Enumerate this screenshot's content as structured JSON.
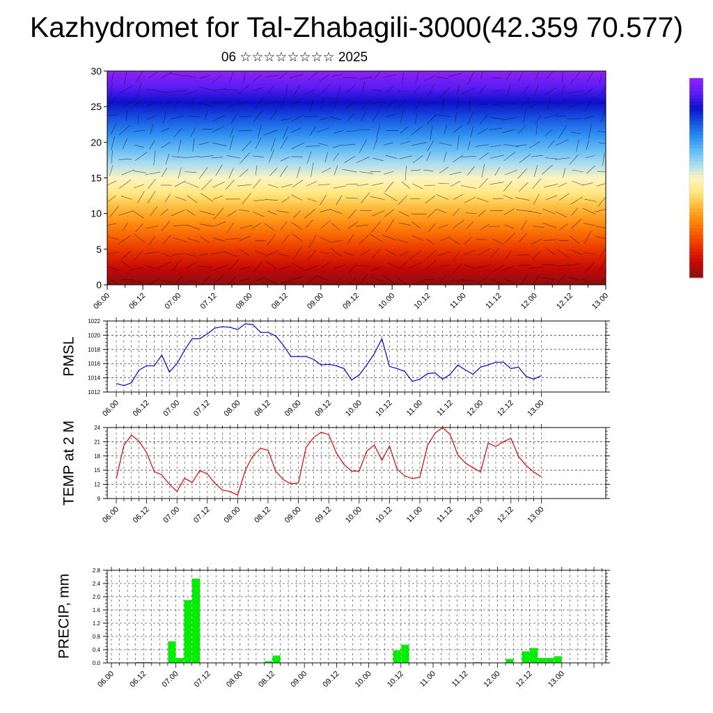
{
  "title": "Kazhydromet for Tal-Zhabagili-3000(42.359 70.577)",
  "subtitle": "06 ☆☆☆☆☆☆☆☆ 2025",
  "time_labels": [
    "06.00",
    "06.12",
    "07.00",
    "07.12",
    "08.00",
    "08.12",
    "09.00",
    "09.12",
    "10.00",
    "10.12",
    "11.00",
    "11.12",
    "12.00",
    "12.12",
    "13.00"
  ],
  "colors": {
    "pmsl_line": "#0000cc",
    "temp_line": "#dd0000",
    "precip_bar": "#00ee00",
    "gradient": [
      "#8c1010",
      "#c40808",
      "#e42a00",
      "#f65a00",
      "#ff8a10",
      "#ffb838",
      "#ffe880",
      "#fdf4c0",
      "#a8dcf0",
      "#60b8f4",
      "#2a8af0",
      "#1650e0",
      "#0c10c8",
      "#5a1cf4",
      "#8a22f4"
    ]
  },
  "chart_data": [
    {
      "type": "heatmap",
      "title": "",
      "ylim": [
        0,
        30
      ],
      "y_ticks": [
        0,
        5,
        10,
        15,
        20,
        25,
        30
      ],
      "y_levels": [
        0,
        2,
        4,
        6,
        8,
        10,
        12,
        14,
        16,
        18,
        20,
        22,
        24,
        26,
        28,
        30
      ],
      "color_order": "warm (red) near 0 rising to yellow at 15, blue to deep blue at 25, violet at 30",
      "overlay": "wind barbs"
    },
    {
      "type": "line",
      "ylabel": "PMSL",
      "ylim": [
        1012,
        1022
      ],
      "y_ticks": [
        1012,
        1014,
        1016,
        1018,
        1020,
        1022
      ],
      "x_hours_step": 3,
      "series": [
        {
          "values": [
            1013.2,
            1012.9,
            1013.3,
            1015.1,
            1015.7,
            1015.7,
            1017.2,
            1014.8,
            1016.0,
            1017.9,
            1019.5,
            1019.5,
            1020.2,
            1021.0,
            1021.2,
            1021.1,
            1020.8,
            1021.6,
            1021.5,
            1020.4,
            1020.4,
            1019.9,
            1018.6,
            1017.0,
            1017.0,
            1017.0,
            1016.6,
            1015.8,
            1015.9,
            1015.7,
            1015.3,
            1013.7,
            1014.4,
            1015.8,
            1017.4,
            1019.5,
            1015.6,
            1015.3,
            1014.9,
            1013.5,
            1013.8,
            1014.6,
            1014.7,
            1013.8,
            1014.5,
            1015.8,
            1015.1,
            1014.5,
            1015.5,
            1015.8,
            1016.2,
            1016.2,
            1015.3,
            1015.5,
            1014.2,
            1013.8,
            1014.3
          ]
        }
      ]
    },
    {
      "type": "line",
      "ylabel": "TEMP at 2 M",
      "ylim": [
        9,
        24
      ],
      "y_ticks": [
        9,
        12,
        15,
        18,
        21,
        24
      ],
      "x_hours_step": 3,
      "series": [
        {
          "values": [
            13.2,
            20.2,
            22.4,
            21.1,
            18.7,
            14.7,
            14.0,
            12.0,
            10.5,
            13.3,
            12.4,
            14.9,
            14.2,
            12.2,
            10.8,
            10.5,
            9.7,
            15.0,
            18.0,
            19.6,
            19.2,
            14.8,
            13.0,
            12.1,
            12.3,
            19.8,
            21.9,
            23.0,
            22.5,
            18.6,
            16.2,
            14.8,
            14.8,
            19.0,
            20.3,
            17.1,
            20.1,
            15.2,
            13.8,
            13.2,
            13.5,
            20.2,
            22.8,
            24.0,
            22.5,
            18.2,
            16.5,
            15.5,
            14.6,
            20.7,
            20.0,
            21.0,
            21.7,
            17.9,
            16.0,
            14.6,
            13.6
          ]
        }
      ]
    },
    {
      "type": "bar",
      "ylabel": "PRECIP, mm",
      "ylim": [
        0,
        2.8
      ],
      "y_ticks": [
        0.0,
        0.4,
        0.8,
        1.2,
        1.6,
        2.0,
        2.4,
        2.8
      ],
      "x_hours_step": 3,
      "values": [
        0,
        0,
        0,
        0.02,
        0.02,
        0,
        0,
        0.65,
        0.15,
        1.9,
        2.55,
        0,
        0,
        0,
        0,
        0,
        0,
        0,
        0,
        0.05,
        0.22,
        0,
        0,
        0,
        0,
        0,
        0,
        0,
        0,
        0,
        0,
        0,
        0,
        0,
        0,
        0.38,
        0.55,
        0,
        0,
        0,
        0,
        0,
        0,
        0,
        0,
        0.02,
        0,
        0,
        0,
        0.12,
        0,
        0.35,
        0.45,
        0.15,
        0.15,
        0.2,
        0
      ]
    }
  ]
}
